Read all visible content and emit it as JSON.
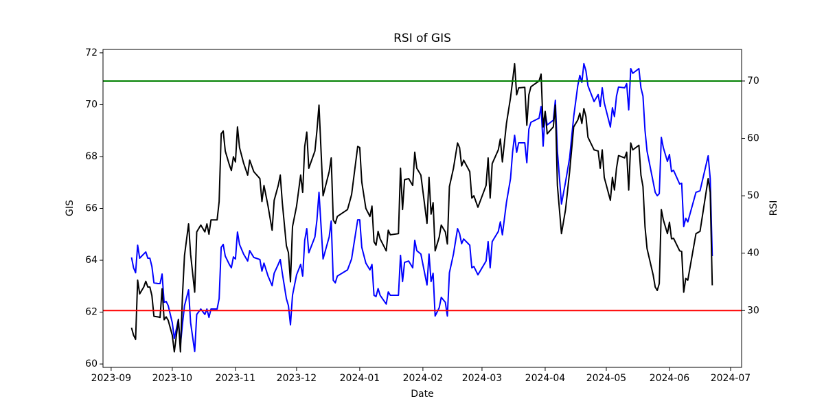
{
  "chart_data": {
    "type": "line",
    "title": "RSI of GIS",
    "xlabel": "Date",
    "ylabel": "GIS",
    "y2label": "RSI",
    "x": [
      10,
      11,
      12,
      13,
      14,
      16,
      17,
      18,
      19,
      20,
      21,
      23,
      24,
      25,
      26,
      27,
      28,
      30,
      31,
      33,
      34,
      35,
      36,
      38,
      39,
      41,
      42,
      44,
      46,
      47,
      48,
      49,
      52,
      53,
      54,
      55,
      56,
      58,
      59,
      60,
      61,
      62,
      63,
      65,
      67,
      68,
      70,
      73,
      74,
      75,
      77,
      79,
      80,
      82,
      83,
      84,
      86,
      87,
      88,
      89,
      91,
      93,
      94,
      95,
      96,
      97,
      100,
      101,
      102,
      104,
      107,
      108,
      109,
      110,
      111,
      116,
      118,
      121,
      122,
      123,
      125,
      127,
      128,
      129,
      130,
      131,
      132,
      135,
      136,
      137,
      141,
      142,
      143,
      144,
      146,
      148,
      149,
      150,
      152,
      155,
      156,
      157,
      158,
      159,
      161,
      162,
      164,
      165,
      166,
      168,
      170,
      171,
      172,
      173,
      176,
      177,
      178,
      180,
      184,
      185,
      186,
      187,
      190,
      191,
      192,
      194,
      196,
      197,
      198,
      199,
      200,
      203,
      204,
      205,
      206,
      210,
      211,
      212,
      213,
      214,
      217,
      218,
      219,
      221,
      223,
      225,
      227,
      229,
      230,
      231,
      232,
      233,
      234,
      237,
      239,
      240,
      241,
      242,
      245,
      246,
      247,
      248,
      249,
      252,
      253,
      254,
      255,
      256,
      259,
      260,
      261,
      262,
      263,
      266,
      267,
      268,
      269,
      270,
      271,
      273,
      274,
      275,
      276,
      279,
      280,
      281,
      282,
      283,
      287,
      289,
      293,
      294,
      295
    ],
    "series": [
      {
        "name": "GIS",
        "color": "#0000ff",
        "axis": "y",
        "values": [
          64.11,
          63.71,
          63.52,
          64.58,
          64.08,
          64.24,
          64.32,
          64.08,
          64.08,
          63.76,
          63.13,
          63.1,
          63.1,
          63.47,
          62.38,
          62.41,
          62.25,
          61.59,
          60.98,
          61.72,
          60.72,
          61.54,
          62.25,
          62.86,
          61.59,
          60.48,
          61.91,
          62.12,
          61.91,
          62.12,
          61.8,
          62.12,
          62.12,
          62.52,
          64.5,
          64.61,
          64.16,
          63.84,
          63.71,
          64.13,
          64.05,
          65.09,
          64.61,
          64.24,
          63.97,
          64.37,
          64.11,
          64.03,
          63.58,
          63.89,
          63.39,
          63.02,
          63.5,
          63.84,
          64.03,
          63.5,
          62.52,
          62.25,
          61.51,
          62.65,
          63.44,
          63.84,
          63.39,
          64.77,
          65.22,
          64.29,
          64.9,
          65.56,
          66.62,
          64.05,
          64.9,
          65.51,
          63.23,
          63.13,
          63.39,
          63.63,
          64.05,
          65.56,
          65.56,
          64.5,
          63.89,
          63.63,
          63.84,
          62.65,
          62.6,
          62.91,
          62.65,
          62.31,
          62.78,
          62.65,
          62.65,
          64.19,
          63.18,
          63.92,
          63.97,
          63.71,
          64.77,
          64.37,
          64.24,
          63.05,
          64.24,
          63.18,
          63.5,
          61.85,
          62.17,
          62.57,
          62.38,
          61.85,
          63.52,
          64.24,
          65.22,
          65.03,
          64.64,
          64.82,
          64.58,
          63.71,
          63.76,
          63.44,
          63.97,
          64.72,
          63.71,
          64.72,
          65.11,
          65.48,
          64.98,
          66.23,
          67.15,
          68.16,
          68.82,
          68.16,
          68.53,
          68.53,
          67.76,
          69.06,
          69.32,
          69.48,
          69.93,
          68.4,
          69.69,
          69.22,
          69.4,
          70.17,
          68.21,
          66.17,
          67.02,
          67.95,
          69.54,
          70.73,
          71.13,
          70.86,
          71.58,
          71.31,
          70.73,
          70.12,
          70.39,
          69.93,
          70.65,
          70.07,
          69.14,
          69.88,
          69.54,
          70.33,
          70.68,
          70.65,
          70.81,
          69.8,
          71.39,
          71.21,
          71.39,
          70.65,
          70.33,
          69.01,
          68.21,
          67.02,
          66.62,
          66.49,
          66.57,
          68.74,
          68.34,
          67.81,
          68.08,
          67.42,
          67.47,
          66.94,
          66.97,
          65.3,
          65.62,
          65.48,
          66.62,
          66.68,
          68.03,
          67.15,
          64.16
        ]
      },
      {
        "name": "RSI",
        "color": "#000000",
        "axis": "y2",
        "values": [
          27.0,
          25.7,
          25.0,
          35.3,
          32.9,
          34.1,
          35.1,
          34.1,
          34.1,
          32.6,
          29.0,
          28.9,
          28.8,
          33.8,
          28.4,
          28.9,
          28.3,
          25.7,
          22.8,
          28.4,
          22.8,
          32.6,
          39.6,
          45.1,
          39.8,
          33.2,
          43.7,
          44.9,
          43.7,
          45.1,
          43.3,
          45.8,
          45.8,
          49.0,
          60.8,
          61.3,
          57.8,
          55.4,
          54.4,
          56.8,
          55.9,
          62.0,
          58.4,
          55.7,
          53.6,
          56.2,
          54.2,
          53.0,
          49.0,
          51.8,
          48.2,
          44.0,
          49.2,
          51.8,
          53.6,
          48.8,
          41.3,
          40.1,
          35.0,
          44.6,
          48.2,
          53.6,
          50.6,
          58.6,
          61.1,
          54.8,
          57.8,
          61.4,
          65.8,
          50.0,
          54.2,
          56.6,
          45.8,
          45.2,
          46.4,
          47.6,
          50.2,
          58.6,
          58.4,
          52.4,
          47.8,
          46.4,
          48.2,
          42.0,
          41.4,
          43.8,
          42.5,
          40.4,
          44.0,
          43.2,
          43.4,
          54.8,
          47.6,
          52.8,
          53.0,
          51.8,
          57.6,
          54.8,
          53.6,
          45.2,
          53.2,
          46.8,
          48.8,
          40.4,
          42.8,
          44.9,
          43.7,
          41.6,
          51.6,
          54.8,
          59.2,
          58.4,
          55.2,
          56.2,
          54.2,
          49.6,
          50.0,
          48.0,
          51.8,
          56.6,
          49.6,
          55.6,
          58.0,
          59.9,
          55.9,
          62.6,
          67.1,
          70.0,
          73.0,
          67.6,
          68.8,
          68.9,
          62.3,
          67.6,
          69.0,
          70.0,
          71.2,
          62.0,
          64.7,
          60.8,
          62.0,
          65.8,
          51.8,
          43.4,
          47.6,
          54.2,
          62.0,
          63.2,
          64.4,
          62.6,
          65.2,
          63.8,
          60.2,
          58.0,
          57.8,
          54.8,
          58.0,
          53.2,
          49.2,
          53.2,
          51.0,
          54.8,
          57.0,
          56.6,
          57.6,
          51.0,
          59.2,
          58.0,
          58.8,
          53.6,
          51.6,
          44.6,
          40.8,
          36.2,
          34.1,
          33.5,
          34.7,
          47.6,
          45.8,
          43.4,
          45.4,
          42.5,
          42.6,
          40.4,
          40.3,
          33.2,
          35.6,
          35.3,
          43.4,
          43.8,
          53.0,
          50.6,
          34.4
        ]
      }
    ],
    "hlines": [
      {
        "value": 70,
        "color": "#008000",
        "axis": "y2"
      },
      {
        "value": 30,
        "color": "#ff0000",
        "axis": "y2"
      }
    ],
    "xlim": [
      -4,
      309.4
    ],
    "xticks": [
      {
        "value": 0,
        "label": "2023-09"
      },
      {
        "value": 30,
        "label": "2023-10"
      },
      {
        "value": 61,
        "label": "2023-11"
      },
      {
        "value": 91,
        "label": "2023-12"
      },
      {
        "value": 122,
        "label": "2024-01"
      },
      {
        "value": 153,
        "label": "2024-02"
      },
      {
        "value": 182,
        "label": "2024-03"
      },
      {
        "value": 213,
        "label": "2024-04"
      },
      {
        "value": 243,
        "label": "2024-05"
      },
      {
        "value": 274,
        "label": "2024-06"
      },
      {
        "value": 304,
        "label": "2024-07"
      }
    ],
    "ylim": [
      59.87,
      72.13
    ],
    "yticks": [
      60,
      62,
      64,
      66,
      68,
      70,
      72
    ],
    "ytick_color": "#0000ff",
    "y2lim": [
      20.1,
      75.5
    ],
    "y2ticks": [
      30,
      40,
      50,
      60,
      70
    ]
  }
}
